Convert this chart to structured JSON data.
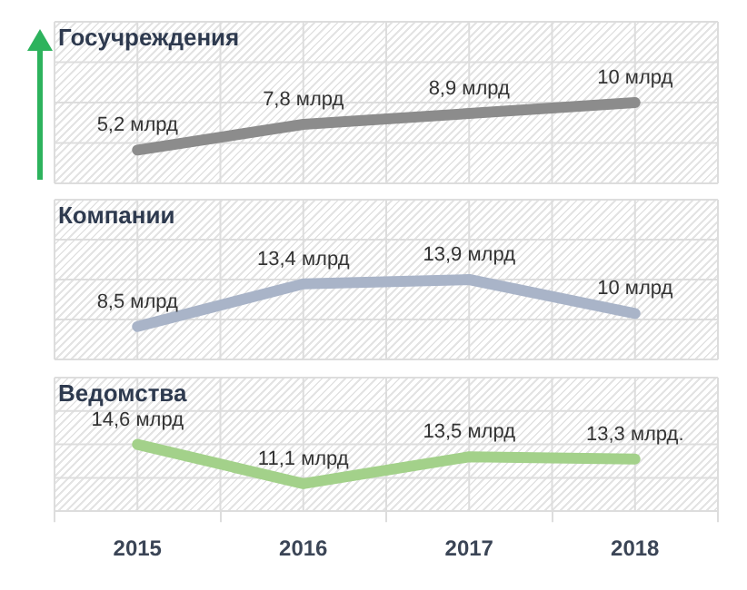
{
  "chart_data": [
    {
      "type": "line",
      "title": "Госучреждения",
      "categories": [
        "2015",
        "2016",
        "2017",
        "2018"
      ],
      "values": [
        5.2,
        7.8,
        8.9,
        10
      ],
      "value_labels": [
        "5,2 млрд",
        "7,8 млрд",
        "8,9 млрд",
        "10 млрд"
      ],
      "color": "#8c8c8c",
      "grid": true,
      "tick_labels": false
    },
    {
      "type": "line",
      "title": "Компании",
      "categories": [
        "2015",
        "2016",
        "2017",
        "2018"
      ],
      "values": [
        8.5,
        13.4,
        13.9,
        10
      ],
      "value_labels": [
        "8,5 млрд",
        "13,4 млрд",
        "13,9 млрд",
        "10 млрд"
      ],
      "color": "#a9b4c8",
      "grid": true,
      "tick_labels": false
    },
    {
      "type": "line",
      "title": "Ведомства",
      "categories": [
        "2015",
        "2016",
        "2017",
        "2018"
      ],
      "values": [
        14.6,
        11.1,
        13.5,
        13.3
      ],
      "value_labels": [
        "14,6 млрд",
        "11,1 млрд",
        "13,5 млрд",
        "13,3 млрд."
      ],
      "color": "#a3d18a",
      "grid": true,
      "tick_labels": "x"
    }
  ]
}
